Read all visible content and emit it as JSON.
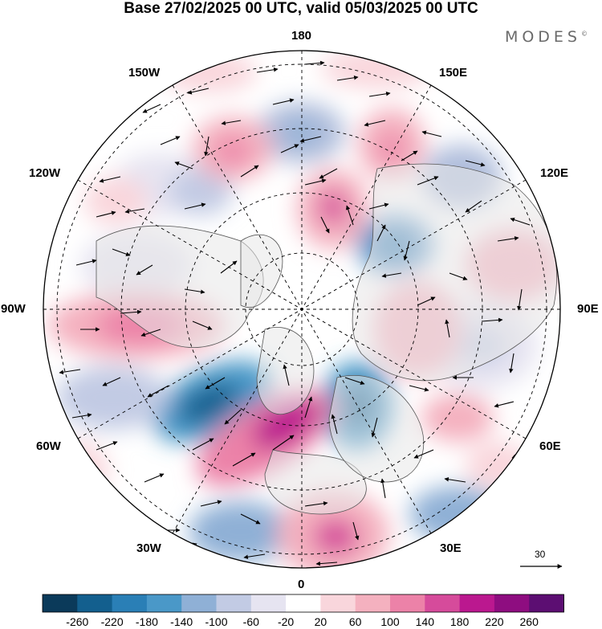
{
  "title": "Base 27/02/2025 00 UTC, valid 05/03/2025 00 UTC",
  "brand": {
    "name": "MODES",
    "mark": "©"
  },
  "map": {
    "projection": "north-polar-stereographic",
    "longitude_labels": {
      "top": "180",
      "bottom": "0",
      "left": "90W",
      "right": "90E",
      "l150w": "150W",
      "r150e": "150E",
      "l120w": "120W",
      "r120e": "120E",
      "l60w": "60W",
      "r60e": "60E",
      "l30w": "30W",
      "r30e": "30E"
    },
    "reference_vector": {
      "value": "30"
    },
    "colors": {
      "land": "#e8e8e8",
      "coast": "#555555",
      "grid": "#000000"
    }
  },
  "colorbar": {
    "labels": [
      "-260",
      "-220",
      "-180",
      "-140",
      "-100",
      "-60",
      "-20",
      "20",
      "60",
      "100",
      "140",
      "180",
      "220",
      "260"
    ],
    "colors": [
      "#0b3a5a",
      "#135f8e",
      "#2a7fb6",
      "#4a98c8",
      "#8fb0d6",
      "#c2cbe4",
      "#e6e4f1",
      "#ffffff",
      "#f9d6dc",
      "#f4b1bf",
      "#ec82a8",
      "#d64b9b",
      "#bb188f",
      "#8e0d80",
      "#5c0e72"
    ]
  }
}
